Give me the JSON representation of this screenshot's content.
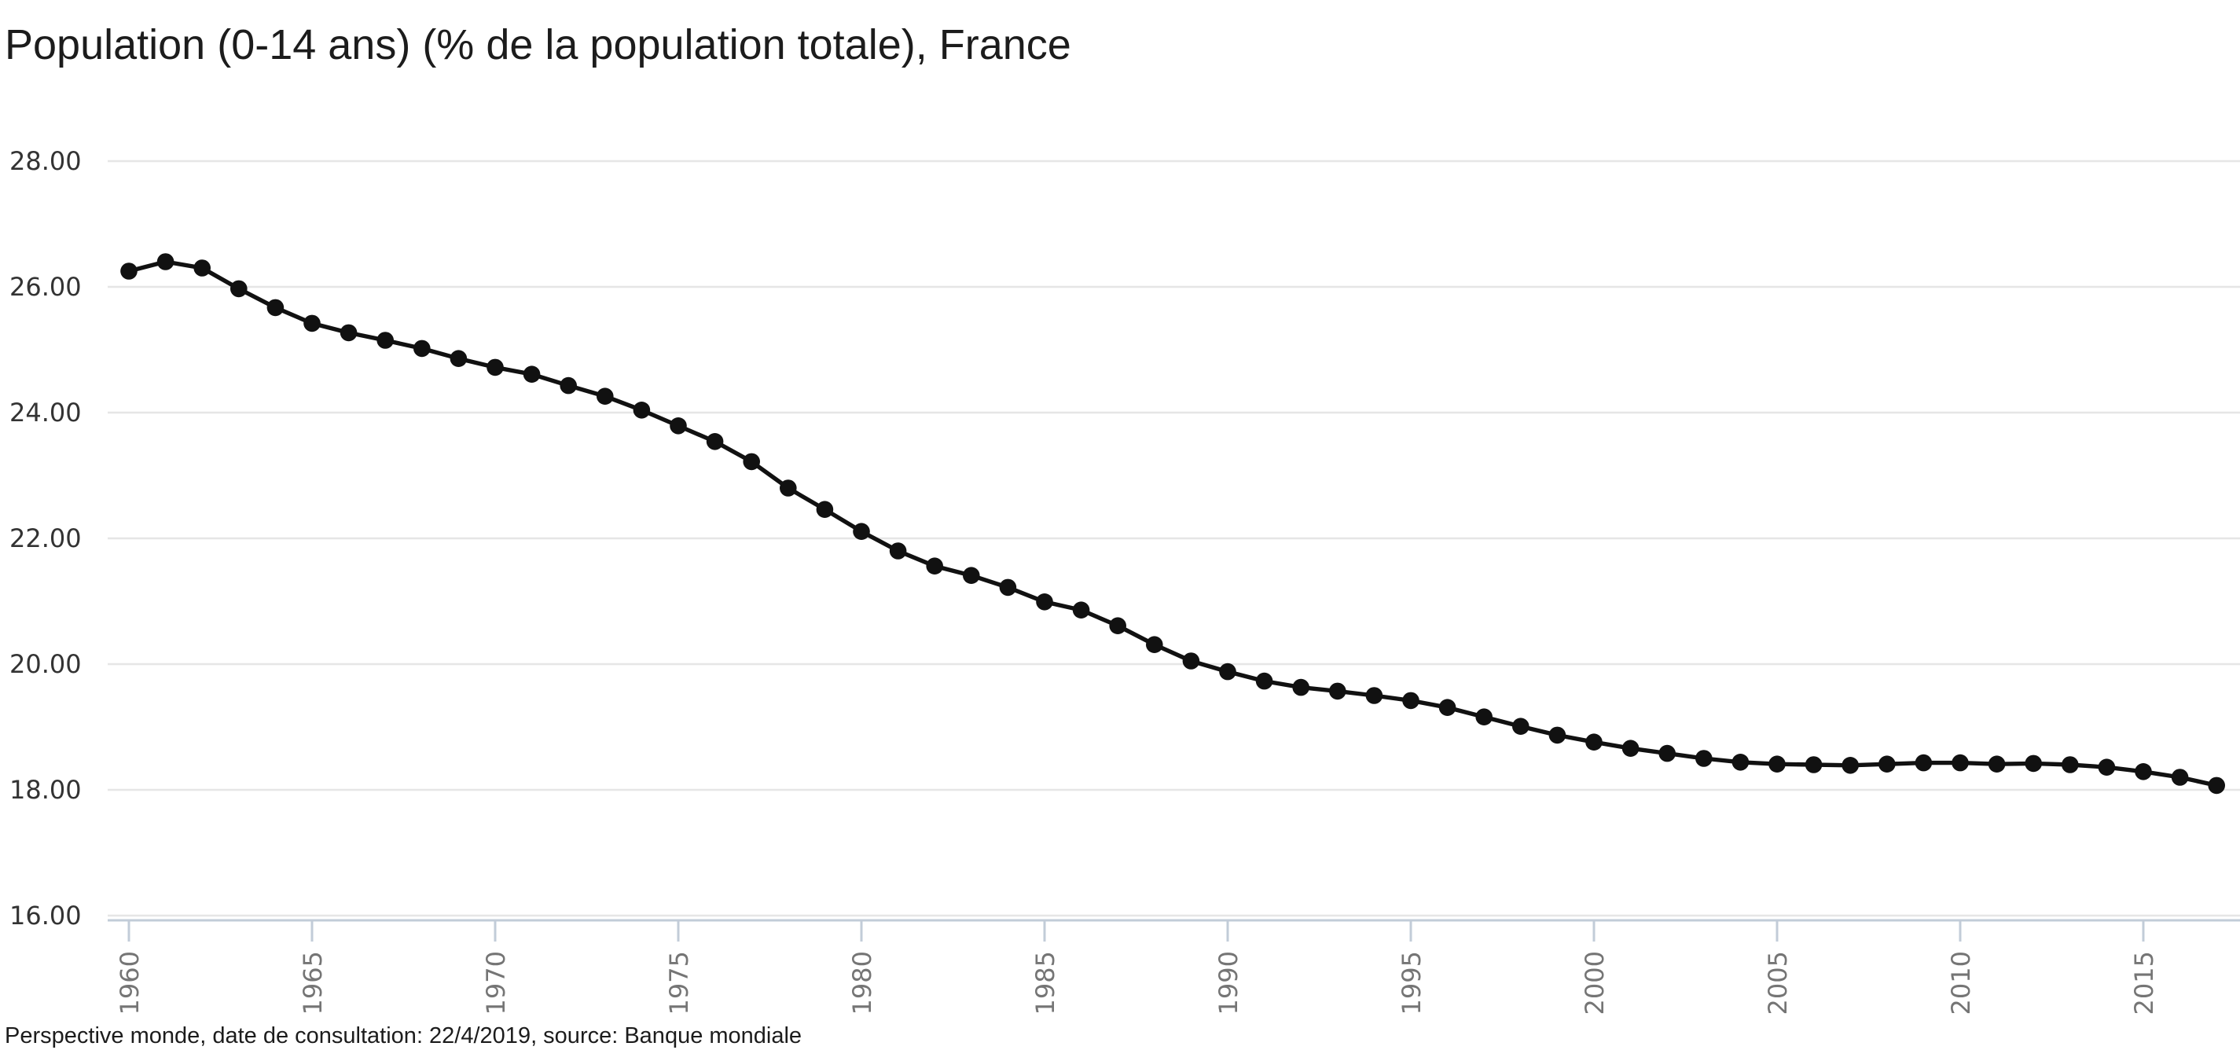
{
  "title": "Population (0-14 ans) (% de la population totale), France",
  "footer": {
    "text": "Perspective monde, date de consultation: 22/4/2019, source: Banque mondiale"
  },
  "chart_data": {
    "type": "line",
    "title": "Population (0-14 ans) (% de la population totale), France",
    "series_name": "France",
    "x": [
      1960,
      1961,
      1962,
      1963,
      1964,
      1965,
      1966,
      1967,
      1968,
      1969,
      1970,
      1971,
      1972,
      1973,
      1974,
      1975,
      1976,
      1977,
      1978,
      1979,
      1980,
      1981,
      1982,
      1983,
      1984,
      1985,
      1986,
      1987,
      1988,
      1989,
      1990,
      1991,
      1992,
      1993,
      1994,
      1995,
      1996,
      1997,
      1998,
      1999,
      2000,
      2001,
      2002,
      2003,
      2004,
      2005,
      2006,
      2007,
      2008,
      2009,
      2010,
      2011,
      2012,
      2013,
      2014,
      2015,
      2016,
      2017
    ],
    "values": [
      26.25,
      26.4,
      26.3,
      25.97,
      25.67,
      25.42,
      25.27,
      25.15,
      25.02,
      24.86,
      24.72,
      24.61,
      24.43,
      24.26,
      24.04,
      23.79,
      23.54,
      23.22,
      22.8,
      22.46,
      22.11,
      21.8,
      21.56,
      21.41,
      21.22,
      20.99,
      20.86,
      20.61,
      20.31,
      20.05,
      19.88,
      19.73,
      19.63,
      19.57,
      19.5,
      19.42,
      19.31,
      19.16,
      19.01,
      18.87,
      18.76,
      18.66,
      18.58,
      18.5,
      18.44,
      18.41,
      18.4,
      18.39,
      18.41,
      18.43,
      18.43,
      18.41,
      18.42,
      18.4,
      18.36,
      18.29,
      18.2,
      18.07
    ],
    "xlabel": "",
    "ylabel": "",
    "ylim": [
      16,
      28
    ],
    "y_tick_labels": [
      "28.00",
      "26.00",
      "24.00",
      "22.00",
      "20.00",
      "18.00",
      "16.00"
    ],
    "x_tick_labels": [
      "1960",
      "1965",
      "1970",
      "1975",
      "1980",
      "1985",
      "1990",
      "1995",
      "2000",
      "2005",
      "2010",
      "2015"
    ],
    "grid": true,
    "legend": "none",
    "marker": "circle",
    "colors": {
      "series": "#111111",
      "grid": "#e6e6e6",
      "axis": "#c2ccd8",
      "title": "#1c1c1c",
      "y_tick_text": "#333333",
      "x_tick_text": "#757575",
      "footer_text": "#1c1c1c",
      "background": "#ffffff"
    }
  }
}
